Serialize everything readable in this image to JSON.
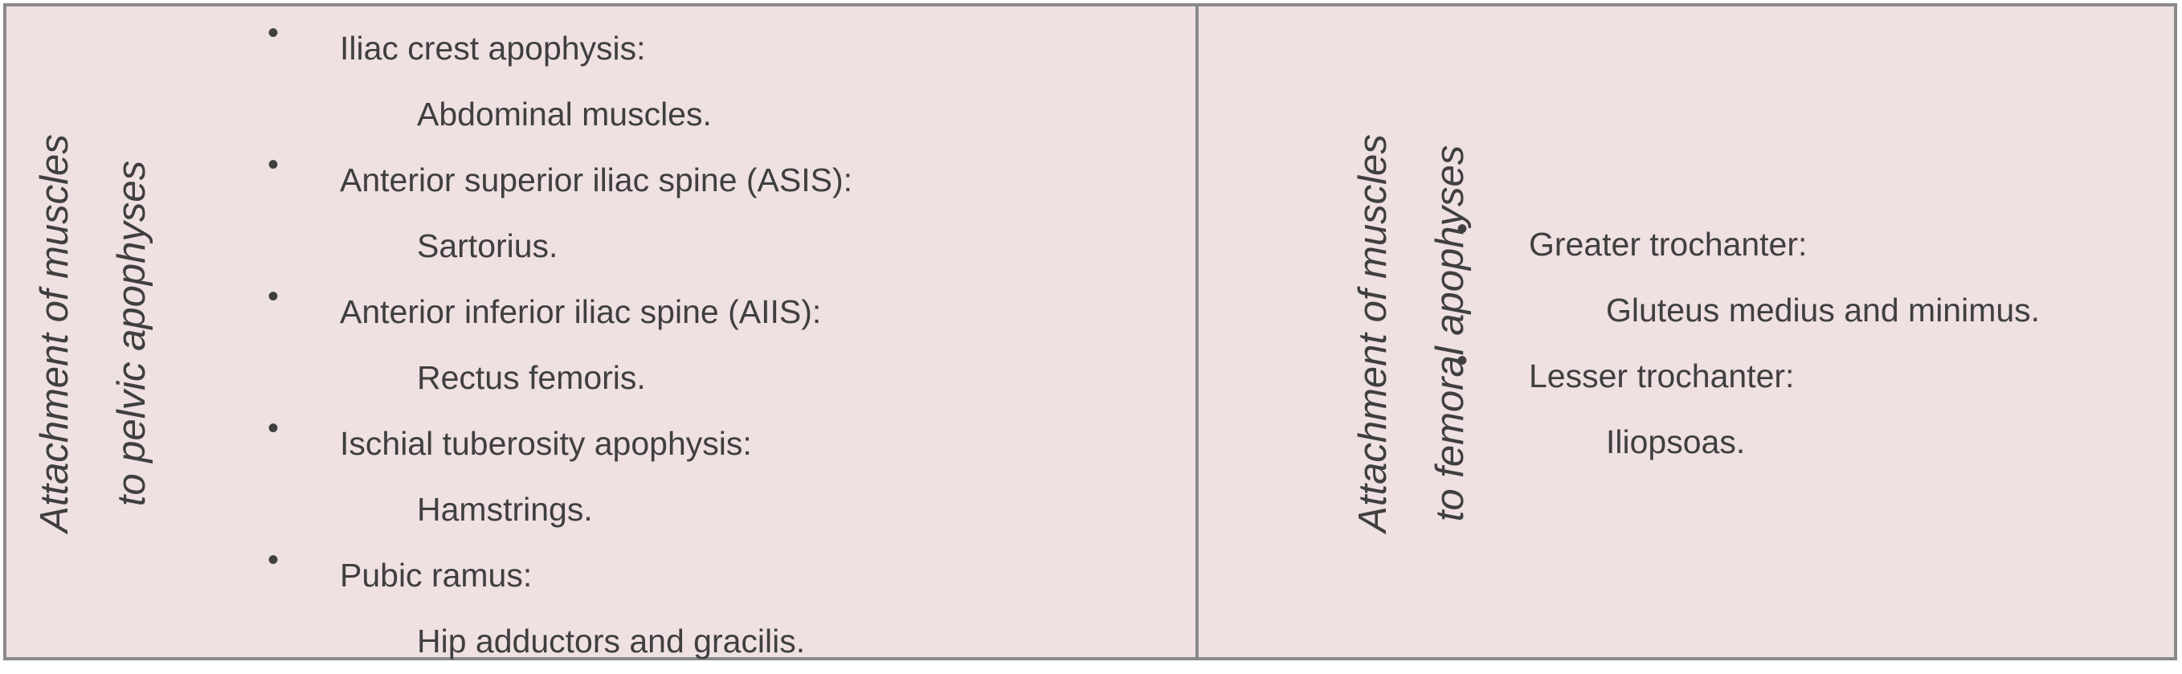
{
  "left": {
    "label_lines": [
      "Attachment of muscles",
      "to pelvic apophyses"
    ],
    "items": [
      {
        "bullet": "•",
        "site": "Iliac crest apophysis:",
        "muscles": "Abdominal muscles."
      },
      {
        "bullet": "•",
        "site": "Anterior superior iliac spine (ASIS):",
        "muscles": "Sartorius."
      },
      {
        "bullet": "•",
        "site": "Anterior inferior iliac spine (AIIS):",
        "muscles": "Rectus femoris."
      },
      {
        "bullet": "•",
        "site": "Ischial tuberosity apophysis:",
        "muscles": "Hamstrings."
      },
      {
        "bullet": "•",
        "site": "Pubic ramus:",
        "muscles": "Hip adductors and gracilis."
      }
    ]
  },
  "right": {
    "label_lines": [
      "Attachment of muscles",
      "to femoral apophyses"
    ],
    "items": [
      {
        "bullet": "•",
        "site": "Greater trochanter:",
        "muscles": "Gluteus medius and minimus."
      },
      {
        "bullet": "•",
        "site": "Lesser trochanter:",
        "muscles": "Iliopsoas."
      }
    ]
  },
  "colors": {
    "background": "#efe0e2",
    "border": "#8a8a8a",
    "text": "#3f3f3f"
  }
}
